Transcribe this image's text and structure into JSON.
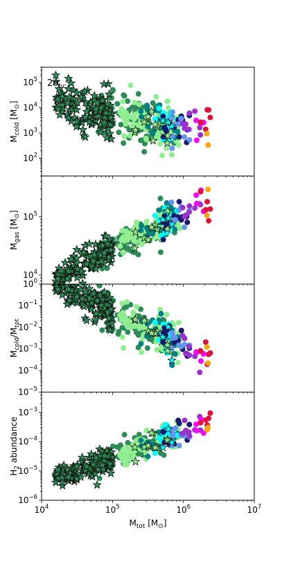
{
  "chart_data": {
    "type": "scatter",
    "shared_x": {
      "label": "M_tot [M_⊙]",
      "label_parts": {
        "base": "M",
        "sub": "tot",
        "rest": " [M",
        "sub2": "⊙",
        "end": "]"
      },
      "scale": "log",
      "xlim": [
        10000,
        10000000
      ],
      "tick_exponents": [
        4,
        5,
        6,
        7
      ],
      "tick_labels": [
        "10^4",
        "10^5",
        "10^6",
        "10^7"
      ]
    },
    "annotation": "2σ_bc",
    "panels": [
      {
        "id": "cold",
        "ylabel": "M_cold [M_⊙]",
        "ylabel_parts": {
          "base": "M",
          "sub": "cold",
          "rest": " [M",
          "sub2": "⊙",
          "end": "]"
        },
        "scale": "log",
        "ylim": [
          20,
          400000
        ],
        "tick_exponents": [
          2,
          3,
          4,
          5
        ],
        "tick_labels": [
          "10^2",
          "10^3",
          "10^4",
          "10^5"
        ],
        "trend": {
          "slope": -0.55,
          "intercept_at_1e5": 3.7,
          "spread": 0.6
        }
      },
      {
        "id": "gas",
        "ylabel": "M_gas [M_⊙]",
        "ylabel_parts": {
          "base": "M",
          "sub": "gas",
          "rest": " [M",
          "sub2": "⊙",
          "end": "]"
        },
        "scale": "log",
        "ylim": [
          7000,
          500000
        ],
        "tick_exponents": [
          4,
          5
        ],
        "tick_labels": [
          "10^4",
          "10^5"
        ],
        "trend": {
          "slope": 0.6,
          "intercept_at_1e5": 4.45,
          "spread": 0.2
        }
      },
      {
        "id": "ratio",
        "ylabel": "M_cold/M_tot",
        "ylabel_parts": {
          "base": "M",
          "sub": "cold",
          "rest": "/M",
          "sub2": "tot",
          "end": ""
        },
        "scale": "log",
        "ylim": [
          1e-05,
          1
        ],
        "tick_exponents": [
          -5,
          -4,
          -3,
          -2,
          -1,
          0
        ],
        "tick_labels": [
          "10^-5",
          "10^-4",
          "10^-3",
          "10^-2",
          "10^-1",
          "10^0"
        ],
        "trend": {
          "slope": -1.55,
          "intercept_at_1e5": -1.3,
          "spread": 0.6
        }
      },
      {
        "id": "h2",
        "ylabel": "H_2 abundance",
        "ylabel_parts": {
          "base": "H",
          "sub": "2",
          "rest": " abundance",
          "sub2": "",
          "end": ""
        },
        "scale": "log",
        "ylim": [
          1e-06,
          0.005
        ],
        "tick_exponents": [
          -6,
          -5,
          -4,
          -3
        ],
        "tick_labels": [
          "10^-6",
          "10^-5",
          "10^-4",
          "10^-3"
        ],
        "trend": {
          "slope": 0.9,
          "intercept_at_1e5": -4.55,
          "spread": 0.3
        }
      }
    ],
    "series": [
      {
        "marker": "star",
        "color": "#2e8b57",
        "edge": "#000000",
        "logx_range": [
          4.2,
          5.0
        ],
        "count": 120
      },
      {
        "marker": "circle",
        "color": "#2e8b57",
        "logx_range": [
          4.8,
          5.9
        ],
        "count": 110
      },
      {
        "marker": "circle",
        "color": "#90ee90",
        "logx_range": [
          5.1,
          5.95
        ],
        "count": 90
      },
      {
        "marker": "circle",
        "color": "#008080",
        "logx_range": [
          5.4,
          5.95
        ],
        "count": 25
      },
      {
        "marker": "circle",
        "color": "#00ffff",
        "logx_range": [
          5.5,
          5.95
        ],
        "count": 14
      },
      {
        "marker": "circle",
        "color": "#191970",
        "logx_range": [
          5.7,
          6.1
        ],
        "count": 14
      },
      {
        "marker": "circle",
        "color": "#6495ed",
        "logx_range": [
          5.8,
          6.1
        ],
        "count": 9
      },
      {
        "marker": "circle",
        "color": "#9932cc",
        "logx_range": [
          5.95,
          6.25
        ],
        "count": 8
      },
      {
        "marker": "circle",
        "color": "#ff00ff",
        "logx_range": [
          6.1,
          6.3
        ],
        "count": 4
      },
      {
        "marker": "circle",
        "color": "#dc143c",
        "logx_range": [
          6.15,
          6.45
        ],
        "count": 5
      },
      {
        "marker": "circle",
        "color": "#ffa500",
        "logx_range": [
          6.25,
          6.35
        ],
        "count": 2
      },
      {
        "marker": "star",
        "color": "#90ee90",
        "edge": "#000000",
        "logx_range": [
          5.3,
          5.85
        ],
        "count": 10
      },
      {
        "marker": "star",
        "color": "#00ffff",
        "edge": "#000000",
        "logx_range": [
          5.65,
          5.95
        ],
        "count": 3
      }
    ]
  }
}
